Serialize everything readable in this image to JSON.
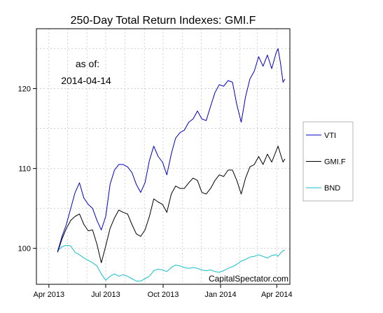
{
  "chart_data": {
    "type": "line",
    "title": "250-Day Total Return Indexes: GMI.F",
    "annotation_line1": "as of:",
    "annotation_line2": "2014-04-14",
    "watermark": "CapitalSpectator.com",
    "xlabel": "",
    "ylabel": "",
    "xlim": [
      "2013-03-12",
      "2014-04-22"
    ],
    "ylim": [
      95.5,
      127.5
    ],
    "grid": true,
    "legend_position": "right",
    "x_ticks": [
      {
        "date": "2013-04-01",
        "label": "Apr 2013"
      },
      {
        "date": "2013-07-01",
        "label": "Jul 2013"
      },
      {
        "date": "2013-10-01",
        "label": "Oct 2013"
      },
      {
        "date": "2014-01-01",
        "label": "Jan 2014"
      },
      {
        "date": "2014-04-01",
        "label": "Apr 2014"
      }
    ],
    "y_ticks": [
      100,
      110,
      120
    ],
    "series": [
      {
        "name": "VTI",
        "color": "#0000c8",
        "points": [
          [
            "2013-04-15",
            99.6
          ],
          [
            "2013-04-22",
            101.5
          ],
          [
            "2013-04-29",
            103.0
          ],
          [
            "2013-05-06",
            105.0
          ],
          [
            "2013-05-13",
            107.0
          ],
          [
            "2013-05-20",
            108.2
          ],
          [
            "2013-05-27",
            106.3
          ],
          [
            "2013-06-03",
            105.5
          ],
          [
            "2013-06-10",
            105.0
          ],
          [
            "2013-06-17",
            103.5
          ],
          [
            "2013-06-24",
            102.3
          ],
          [
            "2013-07-01",
            104.0
          ],
          [
            "2013-07-08",
            108.0
          ],
          [
            "2013-07-15",
            109.8
          ],
          [
            "2013-07-22",
            110.5
          ],
          [
            "2013-07-29",
            110.5
          ],
          [
            "2013-08-05",
            110.2
          ],
          [
            "2013-08-12",
            109.5
          ],
          [
            "2013-08-19",
            108.0
          ],
          [
            "2013-08-26",
            107.0
          ],
          [
            "2013-09-02",
            108.2
          ],
          [
            "2013-09-09",
            111.0
          ],
          [
            "2013-09-16",
            112.8
          ],
          [
            "2013-09-23",
            111.5
          ],
          [
            "2013-09-30",
            110.8
          ],
          [
            "2013-10-07",
            109.2
          ],
          [
            "2013-10-14",
            111.8
          ],
          [
            "2013-10-21",
            113.8
          ],
          [
            "2013-10-28",
            114.5
          ],
          [
            "2013-11-04",
            114.8
          ],
          [
            "2013-11-11",
            115.8
          ],
          [
            "2013-11-18",
            116.2
          ],
          [
            "2013-11-25",
            117.2
          ],
          [
            "2013-12-02",
            116.2
          ],
          [
            "2013-12-09",
            116.0
          ],
          [
            "2013-12-16",
            117.8
          ],
          [
            "2013-12-23",
            119.5
          ],
          [
            "2013-12-30",
            120.5
          ],
          [
            "2014-01-06",
            120.3
          ],
          [
            "2014-01-13",
            121.0
          ],
          [
            "2014-01-20",
            120.8
          ],
          [
            "2014-01-27",
            118.0
          ],
          [
            "2014-02-03",
            115.8
          ],
          [
            "2014-02-10",
            119.0
          ],
          [
            "2014-02-17",
            121.2
          ],
          [
            "2014-02-24",
            122.2
          ],
          [
            "2014-03-03",
            124.0
          ],
          [
            "2014-03-10",
            122.8
          ],
          [
            "2014-03-17",
            124.2
          ],
          [
            "2014-03-24",
            122.5
          ],
          [
            "2014-03-31",
            124.5
          ],
          [
            "2014-04-03",
            125.0
          ],
          [
            "2014-04-07",
            123.2
          ],
          [
            "2014-04-11",
            120.8
          ],
          [
            "2014-04-14",
            121.2
          ]
        ]
      },
      {
        "name": "GMI.F",
        "color": "#000000",
        "points": [
          [
            "2013-04-15",
            99.5
          ],
          [
            "2013-04-22",
            101.2
          ],
          [
            "2013-04-29",
            102.5
          ],
          [
            "2013-05-06",
            103.5
          ],
          [
            "2013-05-13",
            104.0
          ],
          [
            "2013-05-20",
            104.3
          ],
          [
            "2013-05-27",
            103.0
          ],
          [
            "2013-06-03",
            102.2
          ],
          [
            "2013-06-10",
            102.3
          ],
          [
            "2013-06-17",
            100.5
          ],
          [
            "2013-06-24",
            98.2
          ],
          [
            "2013-07-01",
            100.3
          ],
          [
            "2013-07-08",
            102.5
          ],
          [
            "2013-07-15",
            103.8
          ],
          [
            "2013-07-22",
            104.8
          ],
          [
            "2013-07-29",
            104.5
          ],
          [
            "2013-08-05",
            104.3
          ],
          [
            "2013-08-12",
            103.0
          ],
          [
            "2013-08-19",
            101.8
          ],
          [
            "2013-08-26",
            101.5
          ],
          [
            "2013-09-02",
            102.3
          ],
          [
            "2013-09-09",
            104.0
          ],
          [
            "2013-09-16",
            106.2
          ],
          [
            "2013-09-23",
            105.8
          ],
          [
            "2013-09-30",
            105.5
          ],
          [
            "2013-10-07",
            104.5
          ],
          [
            "2013-10-14",
            106.8
          ],
          [
            "2013-10-21",
            107.8
          ],
          [
            "2013-10-28",
            107.5
          ],
          [
            "2013-11-04",
            107.5
          ],
          [
            "2013-11-11",
            108.2
          ],
          [
            "2013-11-18",
            108.8
          ],
          [
            "2013-11-25",
            108.5
          ],
          [
            "2013-12-02",
            107.0
          ],
          [
            "2013-12-09",
            106.8
          ],
          [
            "2013-12-16",
            107.5
          ],
          [
            "2013-12-23",
            108.5
          ],
          [
            "2013-12-30",
            109.2
          ],
          [
            "2014-01-06",
            109.0
          ],
          [
            "2014-01-13",
            109.8
          ],
          [
            "2014-01-20",
            109.8
          ],
          [
            "2014-01-27",
            108.5
          ],
          [
            "2014-02-03",
            106.8
          ],
          [
            "2014-02-10",
            108.8
          ],
          [
            "2014-02-17",
            110.2
          ],
          [
            "2014-02-24",
            110.5
          ],
          [
            "2014-03-03",
            111.5
          ],
          [
            "2014-03-10",
            110.5
          ],
          [
            "2014-03-17",
            111.8
          ],
          [
            "2014-03-24",
            110.8
          ],
          [
            "2014-03-31",
            112.2
          ],
          [
            "2014-04-03",
            112.8
          ],
          [
            "2014-04-07",
            111.8
          ],
          [
            "2014-04-11",
            110.8
          ],
          [
            "2014-04-14",
            111.2
          ]
        ]
      },
      {
        "name": "BND",
        "color": "#17becf",
        "points": [
          [
            "2013-04-15",
            99.7
          ],
          [
            "2013-04-22",
            100.2
          ],
          [
            "2013-04-29",
            100.4
          ],
          [
            "2013-05-06",
            100.3
          ],
          [
            "2013-05-13",
            99.5
          ],
          [
            "2013-05-20",
            99.2
          ],
          [
            "2013-05-27",
            98.8
          ],
          [
            "2013-06-03",
            98.5
          ],
          [
            "2013-06-10",
            98.2
          ],
          [
            "2013-06-17",
            97.8
          ],
          [
            "2013-06-24",
            96.8
          ],
          [
            "2013-07-01",
            96.0
          ],
          [
            "2013-07-08",
            96.5
          ],
          [
            "2013-07-15",
            96.8
          ],
          [
            "2013-07-22",
            96.5
          ],
          [
            "2013-07-29",
            96.7
          ],
          [
            "2013-08-05",
            96.5
          ],
          [
            "2013-08-12",
            96.2
          ],
          [
            "2013-08-19",
            95.9
          ],
          [
            "2013-08-26",
            95.9
          ],
          [
            "2013-09-02",
            96.2
          ],
          [
            "2013-09-09",
            96.5
          ],
          [
            "2013-09-16",
            97.2
          ],
          [
            "2013-09-23",
            97.4
          ],
          [
            "2013-09-30",
            97.3
          ],
          [
            "2013-10-07",
            97.1
          ],
          [
            "2013-10-14",
            97.6
          ],
          [
            "2013-10-21",
            97.9
          ],
          [
            "2013-10-28",
            97.8
          ],
          [
            "2013-11-04",
            97.6
          ],
          [
            "2013-11-11",
            97.5
          ],
          [
            "2013-11-18",
            97.6
          ],
          [
            "2013-11-25",
            97.5
          ],
          [
            "2013-12-02",
            97.3
          ],
          [
            "2013-12-09",
            97.2
          ],
          [
            "2013-12-16",
            97.3
          ],
          [
            "2013-12-23",
            97.1
          ],
          [
            "2013-12-30",
            97.0
          ],
          [
            "2014-01-06",
            97.2
          ],
          [
            "2014-01-13",
            97.5
          ],
          [
            "2014-01-20",
            97.7
          ],
          [
            "2014-01-27",
            98.0
          ],
          [
            "2014-02-03",
            98.4
          ],
          [
            "2014-02-10",
            98.6
          ],
          [
            "2014-02-17",
            98.9
          ],
          [
            "2014-02-24",
            99.0
          ],
          [
            "2014-03-03",
            99.2
          ],
          [
            "2014-03-10",
            99.0
          ],
          [
            "2014-03-17",
            98.8
          ],
          [
            "2014-03-24",
            99.1
          ],
          [
            "2014-03-31",
            99.2
          ],
          [
            "2014-04-03",
            99.0
          ],
          [
            "2014-04-07",
            99.4
          ],
          [
            "2014-04-11",
            99.7
          ],
          [
            "2014-04-14",
            99.8
          ]
        ]
      }
    ]
  }
}
